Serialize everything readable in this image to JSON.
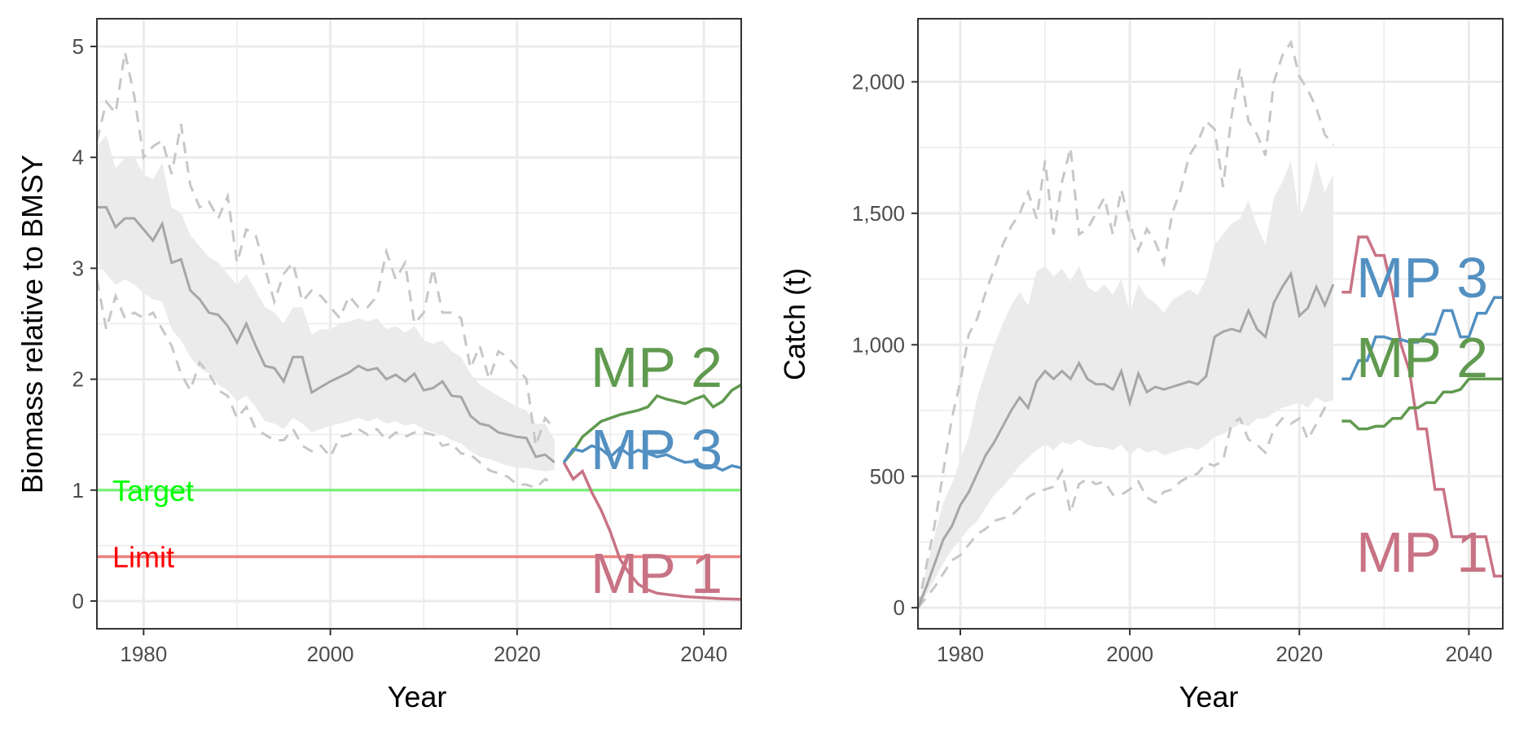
{
  "colors": {
    "mp1": "#C87384",
    "mp2": "#609A4F",
    "mp3": "#5390C1",
    "median": "#A6A6A6",
    "band": "#EBEBEB",
    "dashed": "#C7C7C7",
    "target": "#7FEF7F",
    "target_text": "#00FF00",
    "limit": "#EF7F7F",
    "limit_text": "#FF0000",
    "grid": "#EBEBEB"
  },
  "chart_data": [
    {
      "type": "line",
      "xlabel": "Year",
      "ylabel": "Biomass relative to BMSY",
      "xlim": [
        1975,
        2044
      ],
      "ylim": [
        -0.25,
        5.25
      ],
      "x_ticks": [
        1980,
        2000,
        2020,
        2040
      ],
      "x_tick_labels": [
        "1980",
        "2000",
        "2020",
        "2040"
      ],
      "y_ticks": [
        0,
        1,
        2,
        3,
        4,
        5
      ],
      "y_tick_labels": [
        "0",
        "1",
        "2",
        "3",
        "4",
        "5"
      ],
      "reference_lines": [
        {
          "label": "Target",
          "value": 1.0
        },
        {
          "label": "Limit",
          "value": 0.4
        }
      ],
      "historical": {
        "x": [
          1975,
          1976,
          1977,
          1978,
          1979,
          1980,
          1981,
          1982,
          1983,
          1984,
          1985,
          1986,
          1987,
          1988,
          1989,
          1990,
          1991,
          1992,
          1993,
          1994,
          1995,
          1996,
          1997,
          1998,
          1999,
          2000,
          2001,
          2002,
          2003,
          2004,
          2005,
          2006,
          2007,
          2008,
          2009,
          2010,
          2011,
          2012,
          2013,
          2014,
          2015,
          2016,
          2017,
          2018,
          2019,
          2020,
          2021,
          2022,
          2023,
          2024
        ],
        "median": [
          3.55,
          3.55,
          3.37,
          3.45,
          3.45,
          3.35,
          3.25,
          3.4,
          3.05,
          3.08,
          2.8,
          2.72,
          2.6,
          2.58,
          2.48,
          2.33,
          2.5,
          2.3,
          2.12,
          2.1,
          1.98,
          2.2,
          2.2,
          1.88,
          1.93,
          1.98,
          2.02,
          2.06,
          2.12,
          2.08,
          2.1,
          2.0,
          2.04,
          1.98,
          2.05,
          1.9,
          1.92,
          1.98,
          1.85,
          1.84,
          1.67,
          1.6,
          1.58,
          1.52,
          1.5,
          1.48,
          1.47,
          1.3,
          1.32,
          1.25
        ],
        "lower": [
          3.05,
          2.95,
          2.85,
          2.9,
          2.85,
          2.78,
          2.72,
          2.7,
          2.45,
          2.35,
          2.2,
          2.1,
          2.05,
          1.95,
          1.9,
          1.8,
          1.85,
          1.75,
          1.62,
          1.6,
          1.55,
          1.65,
          1.6,
          1.52,
          1.55,
          1.58,
          1.6,
          1.62,
          1.65,
          1.62,
          1.65,
          1.6,
          1.62,
          1.58,
          1.6,
          1.55,
          1.52,
          1.5,
          1.45,
          1.42,
          1.35,
          1.3,
          1.28,
          1.25,
          1.22,
          1.2,
          1.2,
          1.18,
          1.17,
          1.18
        ],
        "upper": [
          4.1,
          4.2,
          3.9,
          4.0,
          4.0,
          3.85,
          3.8,
          3.95,
          3.55,
          3.5,
          3.3,
          3.2,
          3.1,
          3.05,
          2.95,
          2.85,
          2.95,
          2.8,
          2.65,
          2.6,
          2.5,
          2.65,
          2.65,
          2.4,
          2.45,
          2.45,
          2.5,
          2.52,
          2.55,
          2.52,
          2.55,
          2.45,
          2.48,
          2.42,
          2.48,
          2.35,
          2.32,
          2.35,
          2.25,
          2.2,
          2.05,
          1.95,
          1.9,
          1.85,
          1.8,
          1.75,
          1.72,
          1.6,
          1.6,
          1.45
        ],
        "dashed_low": [
          2.9,
          2.45,
          2.75,
          2.55,
          2.6,
          2.55,
          2.6,
          2.45,
          2.3,
          2.05,
          1.9,
          2.15,
          2.05,
          1.9,
          1.85,
          1.65,
          1.75,
          1.55,
          1.5,
          1.45,
          1.45,
          1.55,
          1.4,
          1.35,
          1.4,
          1.3,
          1.48,
          1.5,
          1.55,
          1.5,
          1.55,
          1.45,
          1.52,
          1.48,
          1.52,
          1.52,
          1.5,
          1.4,
          1.42,
          1.33,
          1.32,
          1.25,
          1.18,
          1.15,
          1.12,
          1.05,
          1.05,
          1.02,
          1.1,
          1.05
        ],
        "dashed_high": [
          4.15,
          4.5,
          4.4,
          4.95,
          4.55,
          4.0,
          4.1,
          4.15,
          3.85,
          4.3,
          3.75,
          3.55,
          3.6,
          3.45,
          3.65,
          3.05,
          3.35,
          3.3,
          3.0,
          2.7,
          2.95,
          3.05,
          2.7,
          2.8,
          2.75,
          2.65,
          2.55,
          2.75,
          2.65,
          2.65,
          2.75,
          3.15,
          2.9,
          3.05,
          2.5,
          2.6,
          3.0,
          2.6,
          2.6,
          2.55,
          2.1,
          2.3,
          2.0,
          2.25,
          2.2,
          2.1,
          2.0,
          1.4,
          1.65,
          1.55
        ]
      },
      "series": [
        {
          "name": "MP 1",
          "x": [
            2025,
            2026,
            2027,
            2028,
            2029,
            2030,
            2031,
            2032,
            2033,
            2034,
            2035,
            2036,
            2037,
            2038,
            2039,
            2040,
            2041,
            2042,
            2043,
            2044
          ],
          "values": [
            1.25,
            1.1,
            1.17,
            0.98,
            0.82,
            0.62,
            0.38,
            0.25,
            0.15,
            0.1,
            0.07,
            0.06,
            0.05,
            0.04,
            0.035,
            0.03,
            0.025,
            0.02,
            0.018,
            0.015
          ]
        },
        {
          "name": "MP 2",
          "x": [
            2025,
            2026,
            2027,
            2028,
            2029,
            2030,
            2031,
            2032,
            2033,
            2034,
            2035,
            2036,
            2037,
            2038,
            2039,
            2040,
            2041,
            2042,
            2043,
            2044
          ],
          "values": [
            1.25,
            1.35,
            1.48,
            1.55,
            1.62,
            1.65,
            1.68,
            1.7,
            1.72,
            1.75,
            1.85,
            1.82,
            1.8,
            1.78,
            1.82,
            1.85,
            1.75,
            1.8,
            1.9,
            1.95
          ]
        },
        {
          "name": "MP 3",
          "x": [
            2025,
            2026,
            2027,
            2028,
            2029,
            2030,
            2031,
            2032,
            2033,
            2034,
            2035,
            2036,
            2037,
            2038,
            2039,
            2040,
            2041,
            2042,
            2043,
            2044
          ],
          "values": [
            1.25,
            1.37,
            1.35,
            1.4,
            1.37,
            1.3,
            1.38,
            1.32,
            1.36,
            1.33,
            1.3,
            1.32,
            1.28,
            1.25,
            1.26,
            1.22,
            1.22,
            1.18,
            1.22,
            1.2
          ]
        }
      ],
      "series_labels": [
        "MP 2",
        "MP 3",
        "MP 1"
      ]
    },
    {
      "type": "line",
      "xlabel": "Year",
      "ylabel": "Catch (t)",
      "xlim": [
        1975,
        2044
      ],
      "ylim": [
        -80,
        2240
      ],
      "x_ticks": [
        1980,
        2000,
        2020,
        2040
      ],
      "x_tick_labels": [
        "1980",
        "2000",
        "2020",
        "2040"
      ],
      "y_ticks": [
        0,
        500,
        1000,
        1500,
        2000
      ],
      "y_tick_labels": [
        "0",
        "500",
        "1,000",
        "1,500",
        "2,000"
      ],
      "historical": {
        "x": [
          1975,
          1976,
          1977,
          1978,
          1979,
          1980,
          1981,
          1982,
          1983,
          1984,
          1985,
          1986,
          1987,
          1988,
          1989,
          1990,
          1991,
          1992,
          1993,
          1994,
          1995,
          1996,
          1997,
          1998,
          1999,
          2000,
          2001,
          2002,
          2003,
          2004,
          2005,
          2006,
          2007,
          2008,
          2009,
          2010,
          2011,
          2012,
          2013,
          2014,
          2015,
          2016,
          2017,
          2018,
          2019,
          2020,
          2021,
          2022,
          2023,
          2024
        ],
        "median": [
          0,
          80,
          170,
          260,
          310,
          390,
          440,
          510,
          580,
          630,
          690,
          750,
          800,
          760,
          860,
          900,
          870,
          900,
          870,
          930,
          870,
          850,
          850,
          830,
          900,
          780,
          890,
          820,
          840,
          830,
          840,
          850,
          860,
          850,
          880,
          1030,
          1050,
          1060,
          1050,
          1130,
          1060,
          1030,
          1160,
          1220,
          1270,
          1110,
          1140,
          1220,
          1150,
          1230
        ],
        "lower": [
          0,
          50,
          110,
          170,
          220,
          260,
          300,
          330,
          380,
          430,
          460,
          500,
          540,
          570,
          600,
          620,
          600,
          630,
          620,
          640,
          620,
          610,
          610,
          600,
          620,
          580,
          610,
          590,
          600,
          580,
          590,
          600,
          610,
          600,
          620,
          650,
          660,
          680,
          700,
          690,
          720,
          720,
          740,
          760,
          770,
          780,
          760,
          800,
          780,
          790
        ],
        "upper": [
          0,
          150,
          280,
          400,
          470,
          560,
          650,
          800,
          900,
          1000,
          1080,
          1150,
          1200,
          1150,
          1280,
          1300,
          1260,
          1290,
          1240,
          1300,
          1220,
          1200,
          1230,
          1190,
          1250,
          1120,
          1230,
          1180,
          1160,
          1120,
          1170,
          1190,
          1210,
          1190,
          1250,
          1380,
          1420,
          1460,
          1480,
          1550,
          1450,
          1380,
          1560,
          1620,
          1700,
          1480,
          1560,
          1700,
          1580,
          1650
        ],
        "dashed_low": [
          0,
          40,
          80,
          130,
          180,
          200,
          240,
          280,
          300,
          330,
          340,
          350,
          380,
          420,
          440,
          450,
          460,
          520,
          360,
          470,
          490,
          470,
          480,
          430,
          430,
          450,
          480,
          420,
          400,
          440,
          450,
          480,
          500,
          510,
          550,
          540,
          560,
          700,
          720,
          640,
          620,
          590,
          680,
          720,
          700,
          720,
          640,
          700,
          760,
          760
        ],
        "dashed_high": [
          0,
          160,
          320,
          520,
          720,
          860,
          1040,
          1100,
          1200,
          1290,
          1380,
          1450,
          1500,
          1580,
          1480,
          1700,
          1420,
          1620,
          1750,
          1420,
          1440,
          1500,
          1560,
          1420,
          1590,
          1460,
          1360,
          1440,
          1390,
          1310,
          1500,
          1590,
          1720,
          1770,
          1850,
          1820,
          1600,
          1870,
          2050,
          1850,
          1800,
          1720,
          2000,
          2100,
          2150,
          2020,
          1970,
          1900,
          1800,
          1760
        ]
      },
      "series": [
        {
          "name": "MP 1",
          "x": [
            2025,
            2026,
            2027,
            2028,
            2029,
            2030,
            2031,
            2032,
            2033,
            2034,
            2035,
            2036,
            2037,
            2038,
            2039,
            2040,
            2041,
            2042,
            2043,
            2044
          ],
          "values": [
            1200,
            1200,
            1410,
            1410,
            1340,
            1340,
            1200,
            1000,
            900,
            680,
            680,
            450,
            450,
            270,
            270,
            270,
            270,
            270,
            120,
            120
          ]
        },
        {
          "name": "MP 2",
          "x": [
            2025,
            2026,
            2027,
            2028,
            2029,
            2030,
            2031,
            2032,
            2033,
            2034,
            2035,
            2036,
            2037,
            2038,
            2039,
            2040,
            2041,
            2042,
            2043,
            2044
          ],
          "values": [
            710,
            710,
            680,
            680,
            690,
            690,
            720,
            720,
            760,
            760,
            780,
            780,
            820,
            820,
            830,
            870,
            870,
            870,
            870,
            870
          ]
        },
        {
          "name": "MP 3",
          "x": [
            2025,
            2026,
            2027,
            2028,
            2029,
            2030,
            2031,
            2032,
            2033,
            2034,
            2035,
            2036,
            2037,
            2038,
            2039,
            2040,
            2041,
            2042,
            2043,
            2044
          ],
          "values": [
            870,
            870,
            940,
            940,
            1030,
            1030,
            1020,
            1020,
            1010,
            1010,
            1040,
            1040,
            1130,
            1130,
            1030,
            1030,
            1120,
            1120,
            1180,
            1180
          ]
        }
      ],
      "series_labels": [
        "MP 3",
        "MP 2",
        "MP 1"
      ]
    }
  ]
}
